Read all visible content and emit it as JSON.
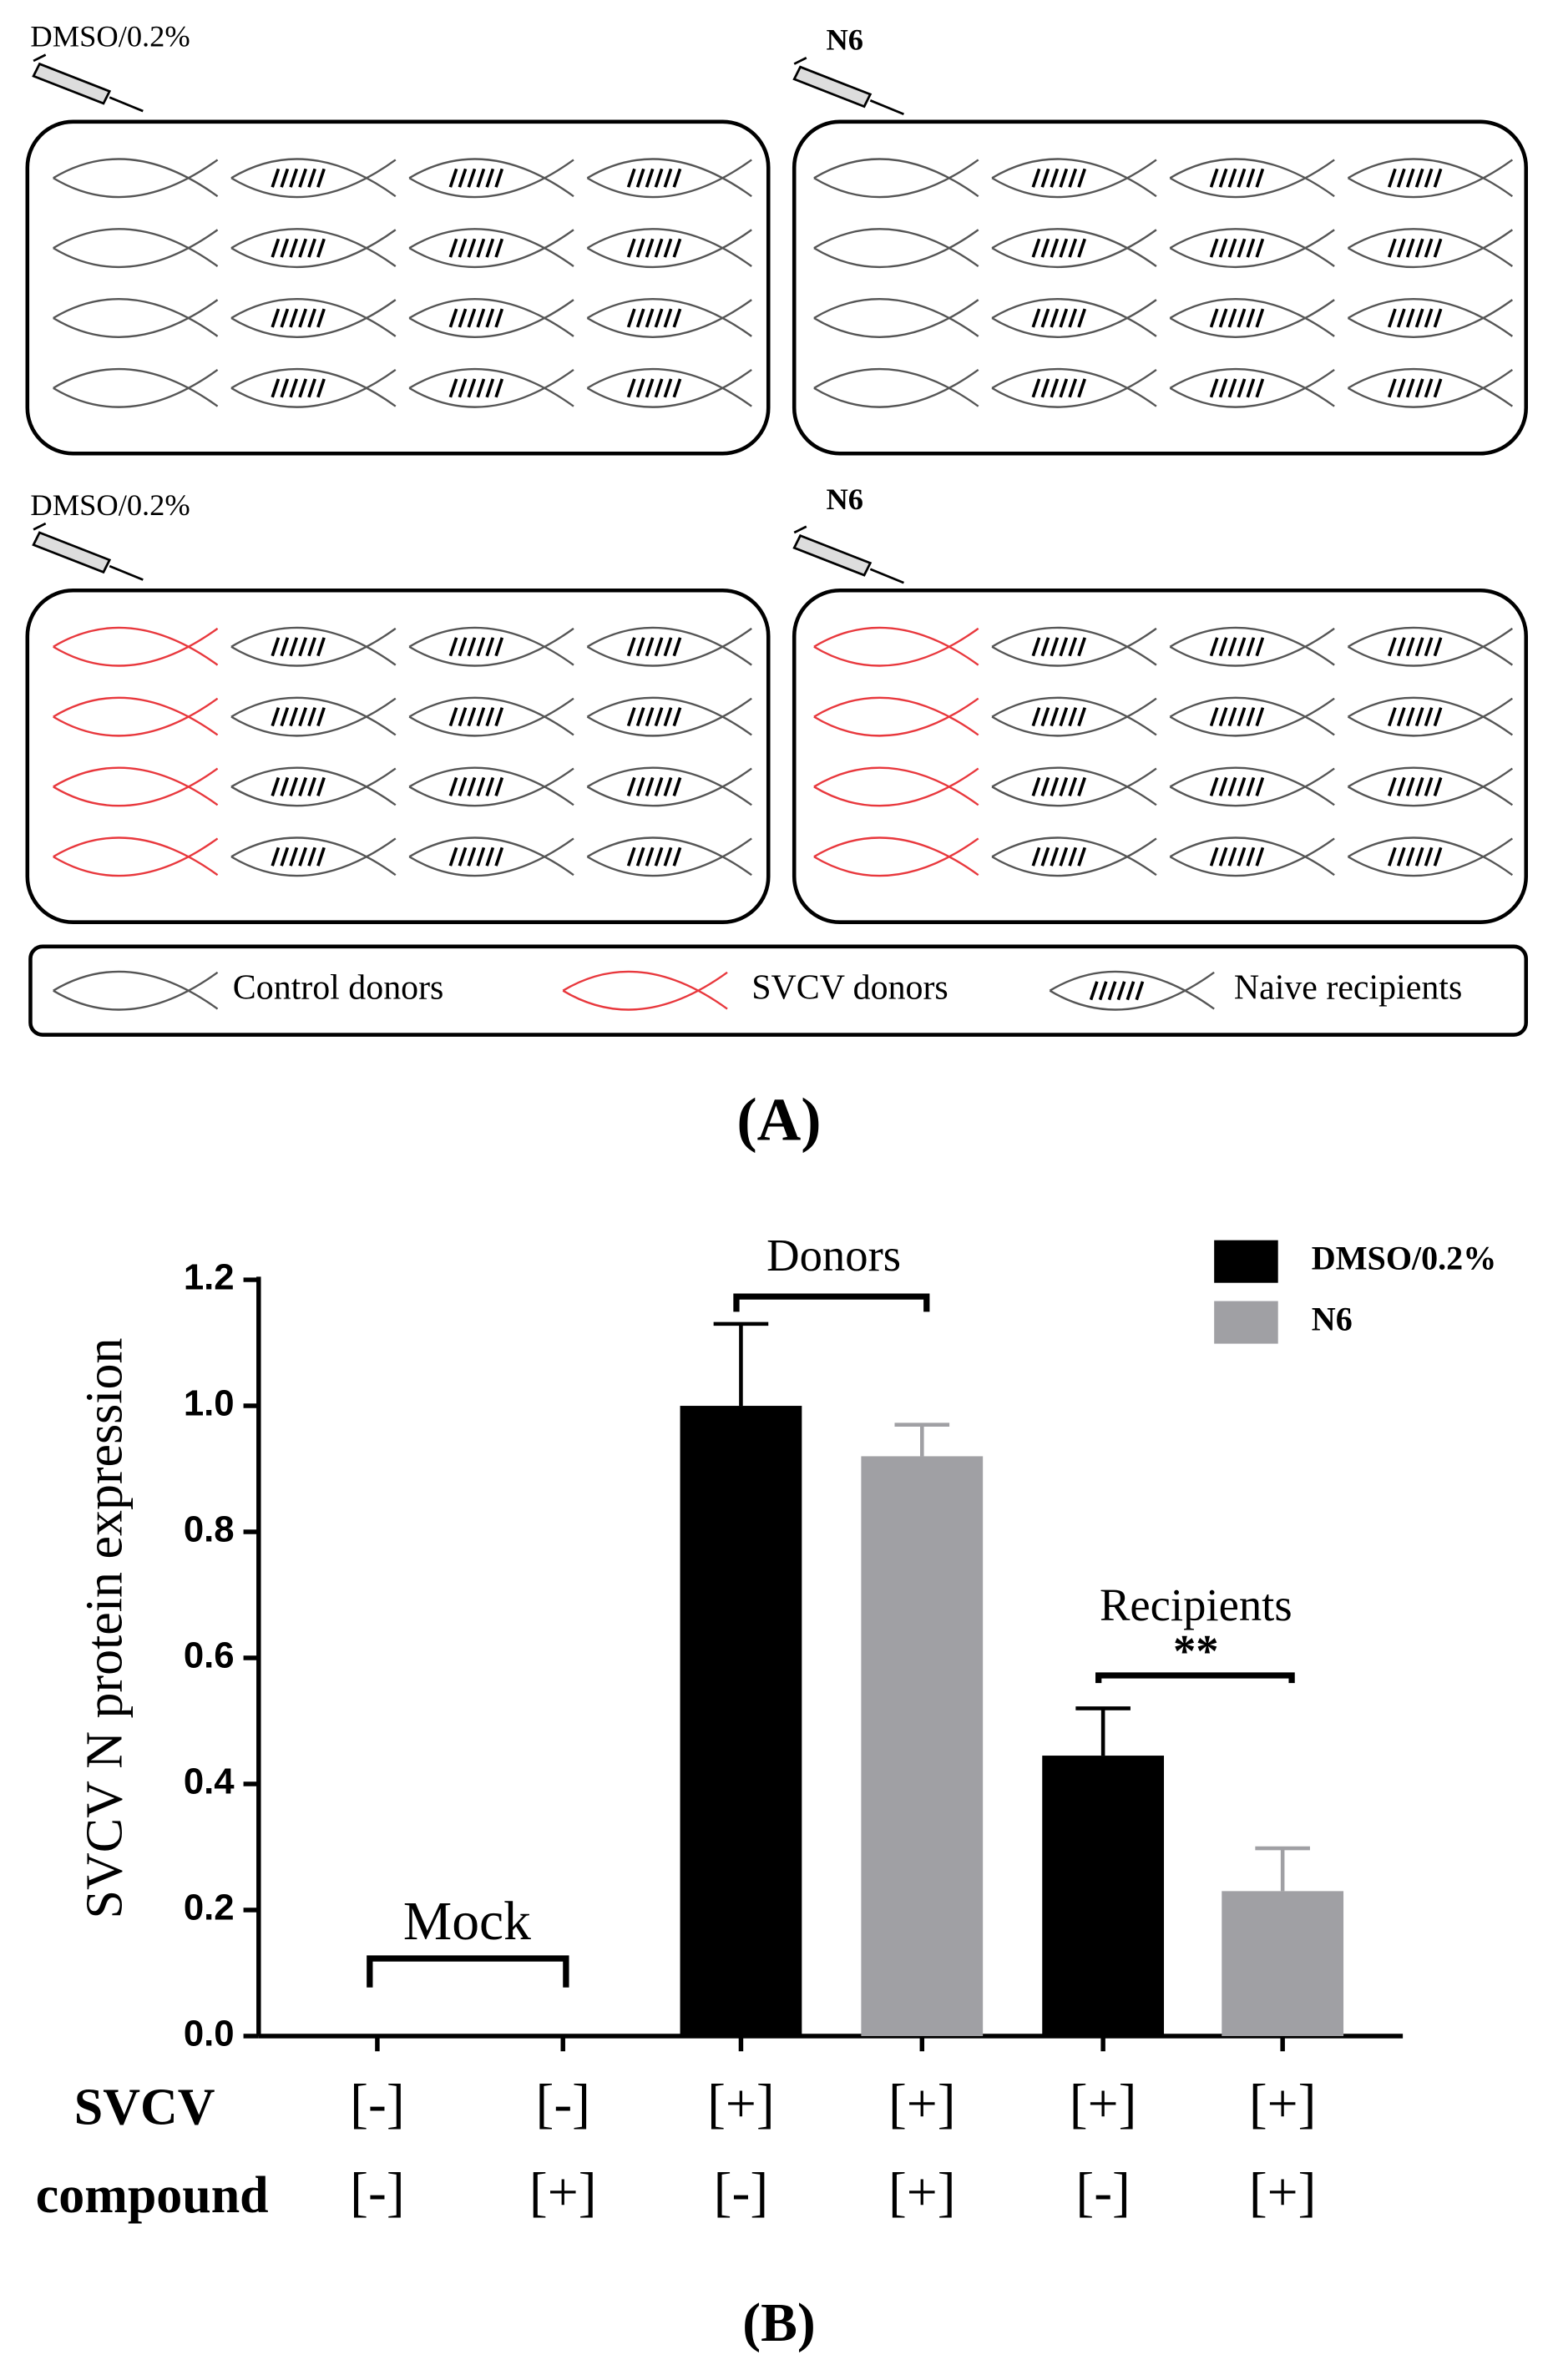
{
  "diagram": {
    "panel_labels": [
      "DMSO/0.2%",
      "N6",
      "DMSO/0.2%",
      "N6"
    ],
    "legend": [
      "Control donors",
      "SVCV donors",
      "Naive recipients"
    ],
    "caption": "(A)"
  },
  "chart_data": {
    "type": "bar",
    "caption": "(B)",
    "ylabel": "SVCV N protein expression",
    "row_labels": [
      {
        "name": "SVCV",
        "values": [
          "[-]",
          "[-]",
          "[+]",
          "[+]",
          "[+]",
          "[+]"
        ]
      },
      {
        "name": "compound",
        "values": [
          "[-]",
          "[+]",
          "[-]",
          "[+]",
          "[-]",
          "[+]"
        ]
      }
    ],
    "series": [
      {
        "name": "DMSO/0.2%",
        "color": "#000000",
        "values": [
          0,
          null,
          1.0,
          null,
          0.445,
          null
        ],
        "errors": [
          0,
          null,
          0.13,
          null,
          0.075,
          null
        ]
      },
      {
        "name": "N6",
        "color": "#a0a0a4",
        "values": [
          null,
          0,
          null,
          0.92,
          null,
          0.23
        ],
        "errors": [
          null,
          0,
          null,
          0.05,
          null,
          0.068
        ]
      }
    ],
    "ylim": [
      0,
      1.2
    ],
    "yticks": [
      {
        "value": 0,
        "label": "0.0"
      },
      {
        "value": 0.2,
        "label": "0.2"
      },
      {
        "value": 0.4,
        "label": "0.4"
      },
      {
        "value": 0.6,
        "label": "0.6"
      },
      {
        "value": 0.8,
        "label": "0.8"
      },
      {
        "value": 1.0,
        "label": "1.0"
      },
      {
        "value": 1.2,
        "label": "1.2"
      }
    ],
    "annotations": [
      "Mock",
      "Donors",
      "Recipients",
      "**"
    ]
  }
}
